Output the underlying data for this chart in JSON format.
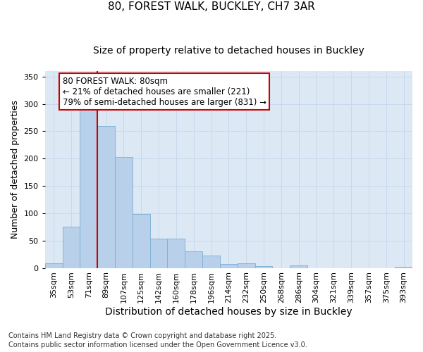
{
  "title": "80, FOREST WALK, BUCKLEY, CH7 3AR",
  "subtitle": "Size of property relative to detached houses in Buckley",
  "xlabel": "Distribution of detached houses by size in Buckley",
  "ylabel": "Number of detached properties",
  "categories": [
    "35sqm",
    "53sqm",
    "71sqm",
    "89sqm",
    "107sqm",
    "125sqm",
    "142sqm",
    "160sqm",
    "178sqm",
    "196sqm",
    "214sqm",
    "232sqm",
    "250sqm",
    "268sqm",
    "286sqm",
    "304sqm",
    "321sqm",
    "339sqm",
    "357sqm",
    "375sqm",
    "393sqm"
  ],
  "values": [
    9,
    75,
    290,
    260,
    203,
    98,
    54,
    54,
    31,
    22,
    7,
    8,
    3,
    0,
    4,
    0,
    0,
    0,
    0,
    0,
    2
  ],
  "bar_color": "#b8d0ea",
  "bar_edge_color": "#7aafd4",
  "property_line_color": "#cc0000",
  "property_line_xindex": 2,
  "annotation_text": "80 FOREST WALK: 80sqm\n← 21% of detached houses are smaller (221)\n79% of semi-detached houses are larger (831) →",
  "annotation_box_color": "#cc0000",
  "grid_color": "#c8d8ec",
  "background_color": "#dce8f4",
  "ylim": [
    0,
    360
  ],
  "yticks": [
    0,
    50,
    100,
    150,
    200,
    250,
    300,
    350
  ],
  "footnote": "Contains HM Land Registry data © Crown copyright and database right 2025.\nContains public sector information licensed under the Open Government Licence v3.0.",
  "title_fontsize": 11,
  "subtitle_fontsize": 10,
  "xlabel_fontsize": 10,
  "ylabel_fontsize": 9,
  "tick_fontsize": 8,
  "annotation_fontsize": 8.5,
  "footnote_fontsize": 7
}
